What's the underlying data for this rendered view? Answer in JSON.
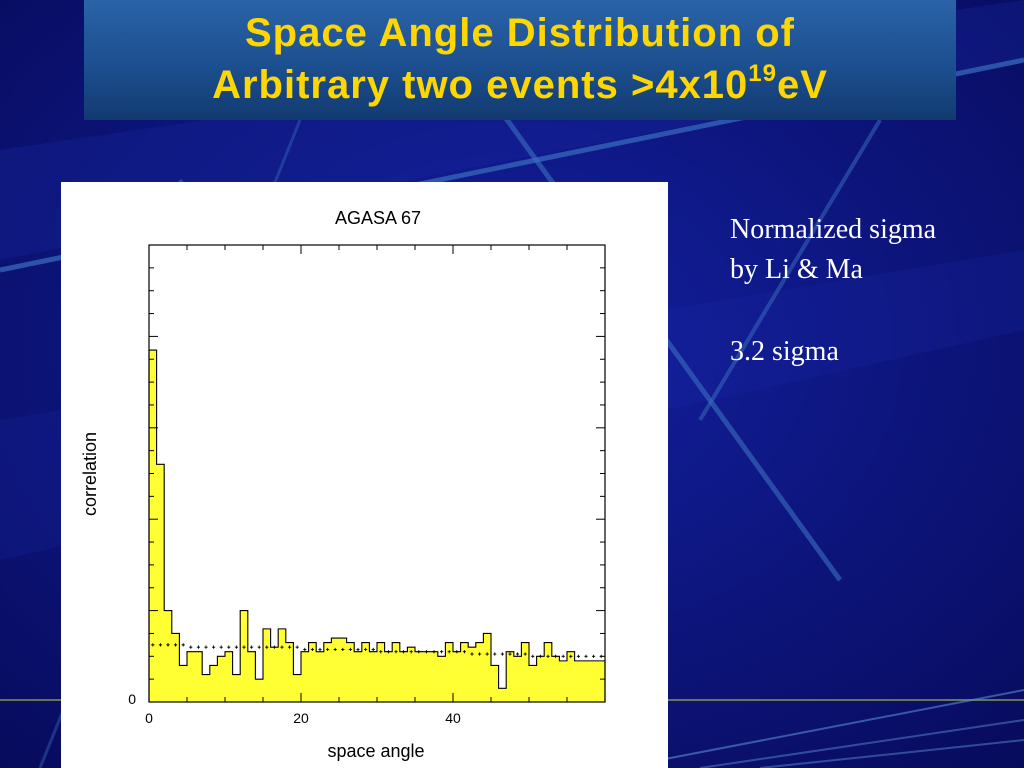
{
  "slide": {
    "title_line1": "Space Angle Distribution of",
    "title_line2_main": "Arbitrary two events >4x10",
    "title_line2_sup": "19",
    "title_line2_tail": "eV",
    "note1_line1": "Normalized sigma",
    "note1_line2": "by Li & Ma",
    "note2": "3.2 sigma"
  },
  "colors": {
    "background": "#0b0f7a",
    "title_text": "#ffd700",
    "histogram_fill": "#ffff33",
    "line": "#000000"
  },
  "chart_data": {
    "type": "bar",
    "title": "AGASA 67",
    "xlabel": "space angle",
    "ylabel": "correlation",
    "x_ticks": [
      "0",
      "20",
      "40"
    ],
    "y_ticks": [
      "0"
    ],
    "xlim": [
      0,
      60
    ],
    "ylim": [
      0,
      1
    ],
    "bin_width": 1,
    "bin_start": [
      0,
      1,
      2,
      3,
      4,
      5,
      6,
      7,
      8,
      9,
      10,
      11,
      12,
      13,
      14,
      15,
      16,
      17,
      18,
      19,
      20,
      21,
      22,
      23,
      24,
      25,
      26,
      27,
      28,
      29,
      30,
      31,
      32,
      33,
      34,
      35,
      36,
      37,
      38,
      39,
      40,
      41,
      42,
      43,
      44,
      45,
      46,
      47,
      48,
      49,
      50,
      51,
      52,
      53,
      54,
      55,
      56,
      57,
      58,
      59
    ],
    "series": [
      {
        "values": [
          0.77,
          0.52,
          0.2,
          0.15,
          0.08,
          0.11,
          0.11,
          0.06,
          0.08,
          0.1,
          0.11,
          0.06,
          0.2,
          0.11,
          0.05,
          0.16,
          0.12,
          0.16,
          0.13,
          0.06,
          0.11,
          0.13,
          0.11,
          0.13,
          0.14,
          0.14,
          0.13,
          0.11,
          0.13,
          0.11,
          0.13,
          0.11,
          0.13,
          0.11,
          0.12,
          0.11,
          0.11,
          0.11,
          0.1,
          0.13,
          0.11,
          0.13,
          0.12,
          0.13,
          0.15,
          0.08,
          0.03,
          0.11,
          0.1,
          0.13,
          0.08,
          0.1,
          0.13,
          0.1,
          0.09,
          0.11,
          0.09,
          0.09,
          0.09,
          0.09
        ]
      },
      {
        "values": [
          0.125,
          0.125,
          0.125,
          0.125,
          0.125,
          0.12,
          0.12,
          0.12,
          0.12,
          0.12,
          0.12,
          0.12,
          0.12,
          0.12,
          0.12,
          0.12,
          0.12,
          0.12,
          0.12,
          0.12,
          0.115,
          0.115,
          0.115,
          0.115,
          0.115,
          0.115,
          0.115,
          0.115,
          0.115,
          0.115,
          0.11,
          0.11,
          0.11,
          0.11,
          0.11,
          0.11,
          0.11,
          0.11,
          0.11,
          0.11,
          0.11,
          0.11,
          0.105,
          0.105,
          0.105,
          0.105,
          0.105,
          0.105,
          0.105,
          0.105,
          0.1,
          0.1,
          0.1,
          0.1,
          0.1,
          0.1,
          0.1,
          0.1,
          0.1,
          0.1
        ]
      }
    ]
  }
}
